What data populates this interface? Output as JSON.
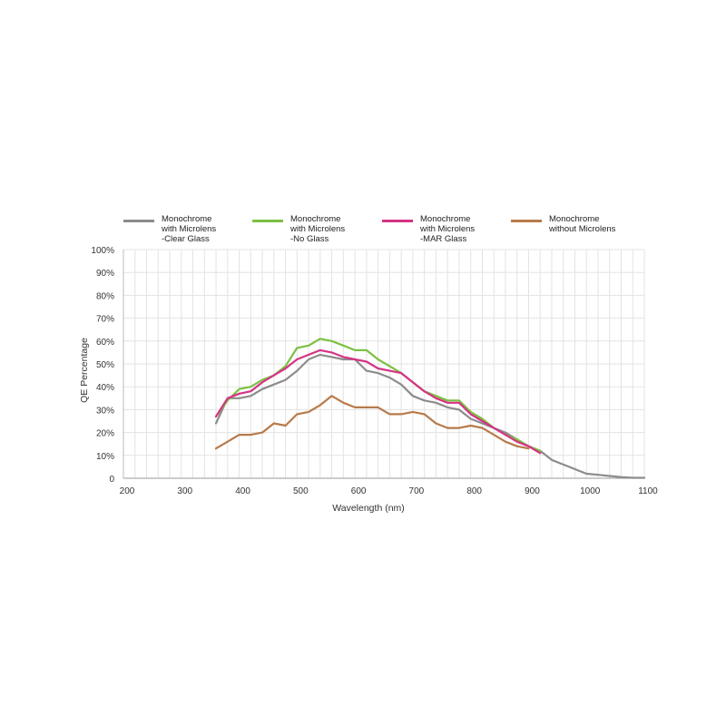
{
  "chart_data": {
    "type": "line",
    "xlabel": "Wavelength (nm)",
    "ylabel": "QE Percentage",
    "xlim": [
      200,
      1100
    ],
    "ylim": [
      0,
      100
    ],
    "x_ticks": [
      "200",
      "300",
      "400",
      "500",
      "600",
      "700",
      "800",
      "900",
      "1000",
      "1100"
    ],
    "y_ticks": [
      "0",
      "10%",
      "20%",
      "30%",
      "40%",
      "50%",
      "60%",
      "70%",
      "80%",
      "90%",
      "100%"
    ],
    "grid": true,
    "legend_position": "top",
    "series": [
      {
        "name": "Monochrome\nwith Microlens\n-Clear Glass",
        "color": "#8c8c8c",
        "x": [
          360,
          380,
          400,
          420,
          440,
          460,
          480,
          500,
          520,
          540,
          560,
          580,
          600,
          620,
          640,
          660,
          680,
          700,
          720,
          740,
          760,
          780,
          800,
          820,
          840,
          860,
          880,
          900,
          920,
          940,
          960,
          980,
          1000,
          1020,
          1040,
          1060,
          1080,
          1100
        ],
        "y": [
          24,
          35,
          35,
          36,
          39,
          41,
          43,
          47,
          52,
          54,
          53,
          52,
          52,
          47,
          46,
          44,
          41,
          36,
          34,
          33,
          31,
          30,
          26,
          24,
          22,
          20,
          17,
          14,
          12,
          8,
          6,
          4,
          2,
          1.5,
          1,
          0.5,
          0.2,
          0.2
        ]
      },
      {
        "name": "Monochrome\nwith Microlens\n-No Glass",
        "color": "#7cc142",
        "x": [
          360,
          380,
          400,
          420,
          440,
          460,
          480,
          500,
          520,
          540,
          560,
          580,
          600,
          620,
          640,
          660,
          680,
          700,
          720,
          740,
          760,
          780,
          800,
          820,
          840,
          860,
          880,
          900,
          920
        ],
        "y": [
          27,
          34,
          39,
          40,
          43,
          45,
          49,
          57,
          58,
          61,
          60,
          58,
          56,
          56,
          52,
          49,
          46,
          42,
          38,
          36,
          34,
          34,
          29,
          26,
          22,
          19,
          17,
          14,
          12
        ]
      },
      {
        "name": "Monochrome\nwith Microlens\n-MAR Glass",
        "color": "#d63384",
        "x": [
          360,
          380,
          400,
          420,
          440,
          460,
          480,
          500,
          520,
          540,
          560,
          580,
          600,
          620,
          640,
          660,
          680,
          700,
          720,
          740,
          760,
          780,
          800,
          820,
          840,
          860,
          880,
          900,
          920
        ],
        "y": [
          27,
          35,
          37,
          38,
          42,
          45,
          48,
          52,
          54,
          56,
          55,
          53,
          52,
          51,
          48,
          47,
          46,
          42,
          38,
          35,
          33,
          33,
          28,
          25,
          22,
          19,
          16,
          14,
          11
        ]
      },
      {
        "name": "Monochrome\nwithout Microlens",
        "color": "#b87a4a",
        "x": [
          360,
          380,
          400,
          420,
          440,
          460,
          480,
          500,
          520,
          540,
          560,
          580,
          600,
          620,
          640,
          660,
          680,
          700,
          720,
          740,
          760,
          780,
          800,
          820,
          840,
          860,
          880,
          900
        ],
        "y": [
          13,
          16,
          19,
          19,
          20,
          24,
          23,
          28,
          29,
          32,
          36,
          33,
          31,
          31,
          31,
          28,
          28,
          29,
          28,
          24,
          22,
          22,
          23,
          22,
          19,
          16,
          14,
          13
        ]
      }
    ]
  }
}
